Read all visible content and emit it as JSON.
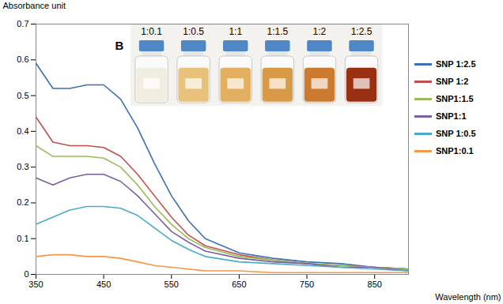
{
  "chart_data": {
    "type": "line",
    "x_label": "Wavelength (nm)",
    "y_label": "Absorbance unit",
    "x": [
      350,
      375,
      400,
      425,
      450,
      475,
      500,
      525,
      550,
      575,
      600,
      650,
      700,
      750,
      800,
      850,
      900
    ],
    "series": [
      {
        "name": "SNP 1:2.5",
        "color": "#3b6fb6",
        "values": [
          0.59,
          0.52,
          0.52,
          0.53,
          0.53,
          0.49,
          0.41,
          0.31,
          0.22,
          0.15,
          0.1,
          0.06,
          0.045,
          0.035,
          0.03,
          0.02,
          0.015
        ]
      },
      {
        "name": "SNP 1:2",
        "color": "#c0504d",
        "values": [
          0.44,
          0.37,
          0.36,
          0.36,
          0.355,
          0.33,
          0.28,
          0.22,
          0.16,
          0.11,
          0.08,
          0.055,
          0.04,
          0.03,
          0.025,
          0.02,
          0.015
        ]
      },
      {
        "name": "SNP1:1.5",
        "color": "#9bbb59",
        "values": [
          0.36,
          0.33,
          0.33,
          0.33,
          0.325,
          0.3,
          0.25,
          0.19,
          0.14,
          0.1,
          0.075,
          0.05,
          0.04,
          0.03,
          0.025,
          0.02,
          0.015
        ]
      },
      {
        "name": "SNP1:1",
        "color": "#7d5fa0",
        "values": [
          0.27,
          0.25,
          0.27,
          0.28,
          0.28,
          0.26,
          0.22,
          0.17,
          0.12,
          0.09,
          0.065,
          0.045,
          0.035,
          0.03,
          0.02,
          0.02,
          0.01
        ]
      },
      {
        "name": "SNP 1:0.5",
        "color": "#4bacc6",
        "values": [
          0.14,
          0.16,
          0.18,
          0.19,
          0.19,
          0.185,
          0.165,
          0.13,
          0.095,
          0.07,
          0.05,
          0.035,
          0.03,
          0.025,
          0.02,
          0.015,
          0.01
        ]
      },
      {
        "name": "SNP1:0.1",
        "color": "#f79646",
        "values": [
          0.05,
          0.055,
          0.055,
          0.05,
          0.05,
          0.045,
          0.035,
          0.025,
          0.02,
          0.015,
          0.01,
          0.01,
          0.005,
          0.005,
          0.005,
          0.005,
          0.005
        ]
      }
    ],
    "xlim": [
      350,
      900
    ],
    "ylim": [
      0,
      0.7
    ],
    "xticks": [
      350,
      450,
      550,
      650,
      750,
      850
    ],
    "yticks": [
      0,
      0.1,
      0.2,
      0.3,
      0.4,
      0.5,
      0.6,
      0.7
    ],
    "grid": false,
    "legend": "right",
    "inset": {
      "panel_label": "B",
      "labels": [
        "1:0.1",
        "1:0.5",
        "1:1",
        "1:1.5",
        "1:2",
        "1:2.5"
      ]
    }
  }
}
